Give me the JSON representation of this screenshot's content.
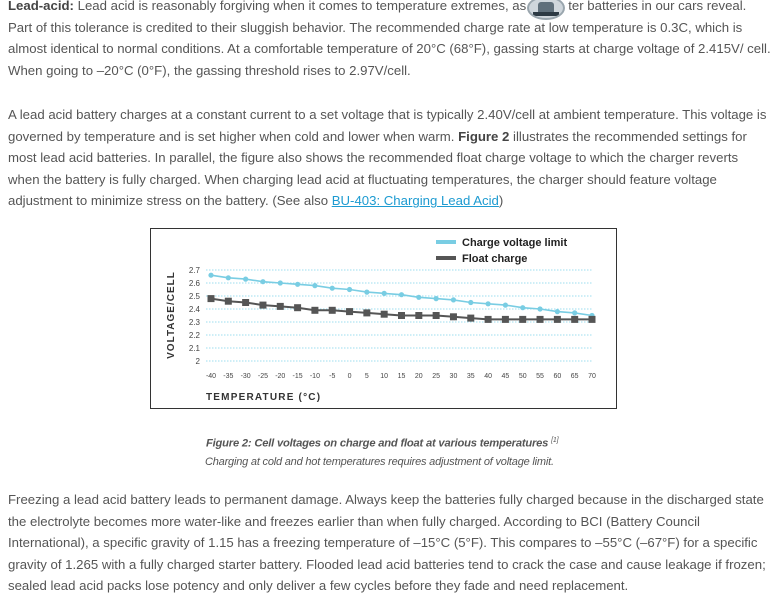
{
  "paragraph1": {
    "bold_lead": "Lead-acid:",
    "text_a": " Lead acid is reasonably forgiving when it comes to temperature extremes, as",
    "text_b": "ter batteries in our cars reveal. Part of this tolerance is credited to their sluggish behavior. The recommended charge rate at low temperature is 0.3C, which is almost identical to normal conditions. At a comfortable temperature of 20°C (68°F), gassing starts at charge voltage of 2.415V/ cell. When going to –20°C (0°F), the gassing threshold rises to 2.97V/cell."
  },
  "paragraph2": {
    "text_a": "A lead acid battery charges at a constant current to a set voltage that is typically 2.40V/cell at ambient temperature. This voltage is governed by temperature and is set higher when cold and lower when warm. ",
    "bold_fig": "Figure 2",
    "text_b": " illustrates the recommended settings for most lead acid batteries. In parallel, the figure also shows the recommended float charge voltage to which the charger reverts when the battery is fully charged. When charging lead acid at fluctuating temperatures, the charger should feature voltage adjustment to minimize stress on the battery. (See also ",
    "link": "BU-403: Charging Lead Acid",
    "text_c": ")"
  },
  "paragraph3": {
    "text": "Freezing a lead acid battery leads to permanent damage. Always keep the batteries fully charged because in the discharged state the electrolyte becomes more water-like and freezes earlier than when fully charged. According to BCI (Battery Council International), a specific gravity of 1.15 has a freezing temperature of –15°C (5°F). This compares to –55°C (–67°F) for a specific gravity of 1.265 with a fully charged starter battery. Flooded lead acid batteries tend to crack the case and cause leakage if frozen; sealed lead acid packs lose potency and only deliver a few cycles before they fade and need replacement."
  },
  "figure": {
    "caption": "Figure 2: Cell voltages on charge and float at various temperatures",
    "caption_ref": "[1]",
    "subcaption": "Charging at cold and hot temperatures requires adjustment of voltage limit."
  },
  "colors": {
    "charge": "#79cde3",
    "float": "#555555",
    "grid": "#7dd4ea"
  },
  "chart_data": {
    "type": "line",
    "xlabel": "TEMPERATURE (°C)",
    "ylabel": "VOLTAGE/CELL",
    "x": [
      -40,
      -35,
      -30,
      -25,
      -20,
      -15,
      -10,
      -5,
      0,
      5,
      10,
      15,
      20,
      25,
      30,
      35,
      40,
      45,
      50,
      55,
      60,
      65,
      70
    ],
    "x_tick_labels": [
      "-40",
      "-35",
      "-30",
      "-25",
      "-20",
      "-15",
      "-10",
      "-5",
      "0",
      "5",
      "10",
      "15",
      "20",
      "25",
      "30",
      "35",
      "40",
      "45",
      "50",
      "55",
      "60",
      "65",
      "70"
    ],
    "y_ticks": [
      "2",
      "2.1",
      "2.2",
      "2.3",
      "2.4",
      "2.5",
      "2.6",
      "2.7"
    ],
    "ylim": [
      2.0,
      2.7
    ],
    "grid": true,
    "legend_position": "top-right",
    "series": [
      {
        "name": "Charge voltage limit",
        "marker": "circle",
        "values": [
          2.66,
          2.64,
          2.63,
          2.61,
          2.6,
          2.59,
          2.58,
          2.56,
          2.55,
          2.53,
          2.52,
          2.51,
          2.49,
          2.48,
          2.47,
          2.45,
          2.44,
          2.43,
          2.41,
          2.4,
          2.38,
          2.37,
          2.35
        ]
      },
      {
        "name": "Float charge",
        "marker": "square",
        "values": [
          2.48,
          2.46,
          2.45,
          2.43,
          2.42,
          2.41,
          2.39,
          2.39,
          2.38,
          2.37,
          2.36,
          2.35,
          2.35,
          2.35,
          2.34,
          2.33,
          2.32,
          2.32,
          2.32,
          2.32,
          2.32,
          2.32,
          2.32
        ]
      }
    ]
  }
}
